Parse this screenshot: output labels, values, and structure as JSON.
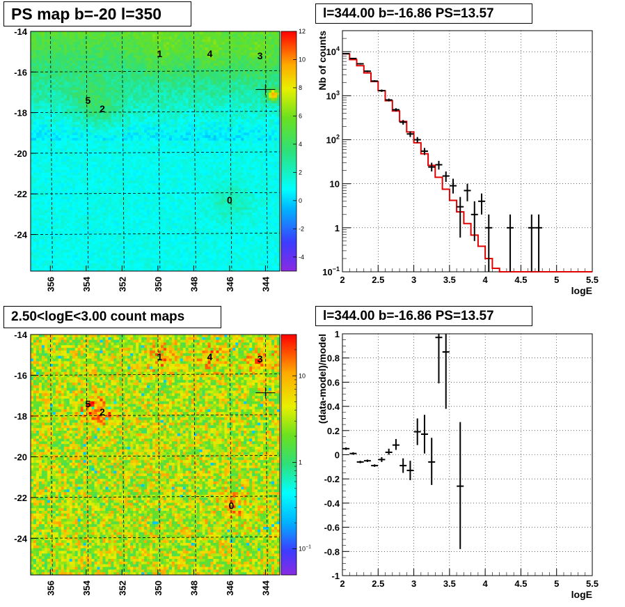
{
  "chart_data": [
    {
      "type": "heatmap",
      "title": "PS map b=-20 l=350",
      "x_ticks": [
        356,
        354,
        352,
        350,
        348,
        346,
        344
      ],
      "y_ticks": [
        -14,
        -16,
        -18,
        -20,
        -22,
        -24
      ],
      "xlim": [
        357.1,
        343.2
      ],
      "ylim": [
        -25.8,
        -14
      ],
      "colorbar": {
        "scale": "linear",
        "range": [
          -5,
          12
        ],
        "ticks": [
          -4,
          -2,
          0,
          2,
          4,
          6,
          8,
          10,
          12
        ]
      },
      "grid": true,
      "sources": [
        {
          "label": "0",
          "l": 346.0,
          "b": -22.3
        },
        {
          "label": "1",
          "l": 349.9,
          "b": -15.1
        },
        {
          "label": "2",
          "l": 353.1,
          "b": -17.8
        },
        {
          "label": "3",
          "l": 344.3,
          "b": -15.2
        },
        {
          "label": "4",
          "l": 347.1,
          "b": -15.1
        },
        {
          "label": "5",
          "l": 353.9,
          "b": -17.4
        }
      ]
    },
    {
      "type": "line",
      "title": "l=344.00 b=-16.86 PS=13.57",
      "xlabel": "logE",
      "ylabel": "Nb of counts",
      "xlim": [
        2,
        5.5
      ],
      "ylim": [
        0.1,
        30000
      ],
      "yscale": "log",
      "x_ticks": [
        "2",
        "2.5",
        "3",
        "3.5",
        "4",
        "4.5",
        "5",
        "5.5"
      ],
      "y_ticks": [
        {
          "value": 0.1,
          "label": "10",
          "sup": "−1"
        },
        {
          "value": 1,
          "label": "1",
          "sup": ""
        },
        {
          "value": 10,
          "label": "10",
          "sup": ""
        },
        {
          "value": 100,
          "label": "10",
          "sup": "2"
        },
        {
          "value": 1000,
          "label": "10",
          "sup": "3"
        },
        {
          "value": 10000,
          "label": "10",
          "sup": "4"
        }
      ],
      "grid": true,
      "series": [
        {
          "kind": "data",
          "color": "#000000",
          "points": [
            {
              "x": 2.05,
              "y": 9000,
              "lo": 8800,
              "hi": 9200
            },
            {
              "x": 2.15,
              "y": 7000,
              "lo": 6800,
              "hi": 7200
            },
            {
              "x": 2.25,
              "y": 5300,
              "lo": 5100,
              "hi": 5500
            },
            {
              "x": 2.35,
              "y": 3600,
              "lo": 3450,
              "hi": 3750
            },
            {
              "x": 2.45,
              "y": 2150,
              "lo": 2050,
              "hi": 2250
            },
            {
              "x": 2.55,
              "y": 1300,
              "lo": 1220,
              "hi": 1380
            },
            {
              "x": 2.65,
              "y": 800,
              "lo": 740,
              "hi": 860
            },
            {
              "x": 2.75,
              "y": 480,
              "lo": 440,
              "hi": 520
            },
            {
              "x": 2.85,
              "y": 250,
              "lo": 220,
              "hi": 280
            },
            {
              "x": 2.95,
              "y": 135,
              "lo": 115,
              "hi": 155
            },
            {
              "x": 3.05,
              "y": 100,
              "lo": 85,
              "hi": 115
            },
            {
              "x": 3.15,
              "y": 55,
              "lo": 45,
              "hi": 65
            },
            {
              "x": 3.25,
              "y": 24,
              "lo": 19,
              "hi": 30
            },
            {
              "x": 3.35,
              "y": 27,
              "lo": 21,
              "hi": 33
            },
            {
              "x": 3.45,
              "y": 15,
              "lo": 11,
              "hi": 19
            },
            {
              "x": 3.55,
              "y": 9,
              "lo": 6,
              "hi": 13
            },
            {
              "x": 3.65,
              "y": 3,
              "lo": 0.6,
              "hi": 5
            },
            {
              "x": 3.75,
              "y": 7,
              "lo": 4,
              "hi": 10
            },
            {
              "x": 3.85,
              "y": 2,
              "lo": 0.5,
              "hi": 4
            },
            {
              "x": 3.95,
              "y": 4,
              "lo": 2,
              "hi": 6
            },
            {
              "x": 4.05,
              "y": 1,
              "lo": 0.1,
              "hi": 2
            },
            {
              "x": 4.35,
              "y": 1,
              "lo": 0.1,
              "hi": 2
            },
            {
              "x": 4.65,
              "y": 1,
              "lo": 0.1,
              "hi": 2
            },
            {
              "x": 4.75,
              "y": 1,
              "lo": 0.1,
              "hi": 2
            }
          ]
        },
        {
          "kind": "model",
          "color": "#e00000",
          "bin_edges": [
            2.0,
            2.1,
            2.2,
            2.3,
            2.4,
            2.5,
            2.6,
            2.7,
            2.8,
            2.9,
            3.0,
            3.1,
            3.2,
            3.3,
            3.4,
            3.5,
            3.6,
            3.7,
            3.8,
            3.9,
            4.0,
            4.1,
            4.2,
            5.5
          ],
          "values": [
            8900,
            6600,
            4800,
            3300,
            2100,
            1300,
            770,
            450,
            260,
            150,
            85,
            48,
            26,
            14,
            7.5,
            4.2,
            2.3,
            1.25,
            0.68,
            0.38,
            0.2,
            0.12,
            0.1
          ]
        }
      ]
    },
    {
      "type": "heatmap",
      "title": "2.50<logE<3.00 count maps",
      "x_ticks": [
        356,
        354,
        352,
        350,
        348,
        346,
        344
      ],
      "y_ticks": [
        -14,
        -16,
        -18,
        -20,
        -22,
        -24
      ],
      "xlim": [
        357.1,
        343.2
      ],
      "ylim": [
        -25.8,
        -14
      ],
      "colorbar": {
        "scale": "log",
        "range": [
          0.05,
          30
        ],
        "ticks": [
          {
            "value": 0.1,
            "label": "10",
            "sup": "−1"
          },
          {
            "value": 1,
            "label": "1",
            "sup": ""
          },
          {
            "value": 10,
            "label": "10",
            "sup": ""
          }
        ]
      },
      "grid": true,
      "sources": [
        {
          "label": "0",
          "l": 345.9,
          "b": -22.4
        },
        {
          "label": "1",
          "l": 349.9,
          "b": -15.1
        },
        {
          "label": "2",
          "l": 353.1,
          "b": -17.8
        },
        {
          "label": "3",
          "l": 344.3,
          "b": -15.2
        },
        {
          "label": "4",
          "l": 347.1,
          "b": -15.1
        },
        {
          "label": "5",
          "l": 353.9,
          "b": -17.4
        }
      ]
    },
    {
      "type": "scatter",
      "title": "l=344.00 b=-16.86 PS=13.57",
      "xlabel": "logE",
      "ylabel": "(data-model)/model",
      "xlim": [
        2,
        5.5
      ],
      "ylim": [
        -1,
        1
      ],
      "x_ticks": [
        "2",
        "2.5",
        "3",
        "3.5",
        "4",
        "4.5",
        "5",
        "5.5"
      ],
      "y_ticks": [
        "-1",
        "-0.8",
        "-0.6",
        "-0.4",
        "-0.2",
        "0",
        "0.2",
        "0.4",
        "0.6",
        "0.8",
        "1"
      ],
      "grid": true,
      "points": [
        {
          "x": 2.05,
          "y": 0.05,
          "lo": 0.04,
          "hi": 0.06
        },
        {
          "x": 2.15,
          "y": 0.01,
          "lo": 0.0,
          "hi": 0.02
        },
        {
          "x": 2.25,
          "y": -0.06,
          "lo": -0.07,
          "hi": -0.05
        },
        {
          "x": 2.35,
          "y": -0.05,
          "lo": -0.06,
          "hi": -0.04
        },
        {
          "x": 2.45,
          "y": -0.09,
          "lo": -0.1,
          "hi": -0.08
        },
        {
          "x": 2.55,
          "y": -0.04,
          "lo": -0.06,
          "hi": -0.02
        },
        {
          "x": 2.65,
          "y": 0.02,
          "lo": 0.0,
          "hi": 0.05
        },
        {
          "x": 2.75,
          "y": 0.08,
          "lo": 0.04,
          "hi": 0.13
        },
        {
          "x": 2.85,
          "y": -0.09,
          "lo": -0.15,
          "hi": -0.03
        },
        {
          "x": 2.95,
          "y": -0.13,
          "lo": -0.21,
          "hi": -0.05
        },
        {
          "x": 3.05,
          "y": 0.19,
          "lo": 0.08,
          "hi": 0.3
        },
        {
          "x": 3.15,
          "y": 0.17,
          "lo": 0.01,
          "hi": 0.33
        },
        {
          "x": 3.25,
          "y": -0.06,
          "lo": -0.25,
          "hi": 0.14
        },
        {
          "x": 3.35,
          "y": 0.97,
          "lo": 0.59,
          "hi": 1.0
        },
        {
          "x": 3.45,
          "y": 0.85,
          "lo": 0.38,
          "hi": 1.0
        },
        {
          "x": 3.65,
          "y": -0.26,
          "lo": -0.78,
          "hi": 0.27
        }
      ]
    }
  ]
}
